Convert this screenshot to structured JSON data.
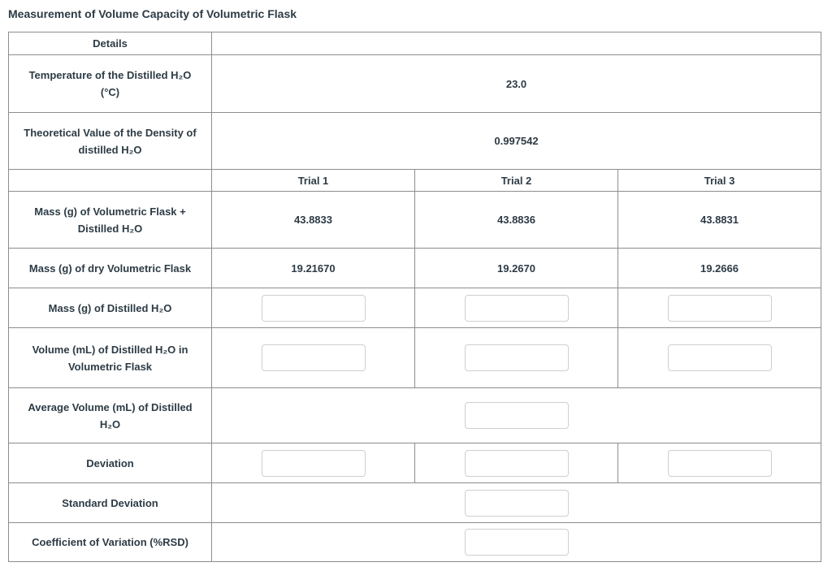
{
  "page": {
    "title": "Measurement of Volume Capacity of Volumetric Flask"
  },
  "colors": {
    "text": "#2d3b45",
    "table_border": "#8d8d8d",
    "input_border": "#cfcfcf",
    "background": "#ffffff"
  },
  "table": {
    "header": {
      "details_label": "Details",
      "trial1": "Trial 1",
      "trial2": "Trial 2",
      "trial3": "Trial 3"
    },
    "rows": {
      "temperature": {
        "label": "Temperature of the Distilled H₂O\n(°C)",
        "value": "23.0"
      },
      "density": {
        "label": "Theoretical Value of the Density of\ndistilled H₂O",
        "value": "0.997542"
      },
      "mass_flask_water": {
        "label": "Mass (g) of Volumetric Flask +\nDistilled H₂O",
        "trial1": "43.8833",
        "trial2": "43.8836",
        "trial3": "43.8831"
      },
      "mass_dry_flask": {
        "label": "Mass (g) of dry Volumetric Flask",
        "trial1": "19.21670",
        "trial2": "19.2670",
        "trial3": "19.2666"
      },
      "mass_water": {
        "label": "Mass (g) of Distilled H₂O",
        "trial1": "",
        "trial2": "",
        "trial3": ""
      },
      "volume_water": {
        "label": "Volume (mL) of Distilled H₂O in\nVolumetric Flask",
        "trial1": "",
        "trial2": "",
        "trial3": ""
      },
      "average_volume": {
        "label": "Average Volume (mL) of Distilled\nH₂O",
        "value": ""
      },
      "deviation": {
        "label": "Deviation",
        "trial1": "",
        "trial2": "",
        "trial3": ""
      },
      "std_dev": {
        "label": "Standard Deviation",
        "value": ""
      },
      "cv": {
        "label": "Coefficient of Variation (%RSD)",
        "value": ""
      }
    }
  }
}
